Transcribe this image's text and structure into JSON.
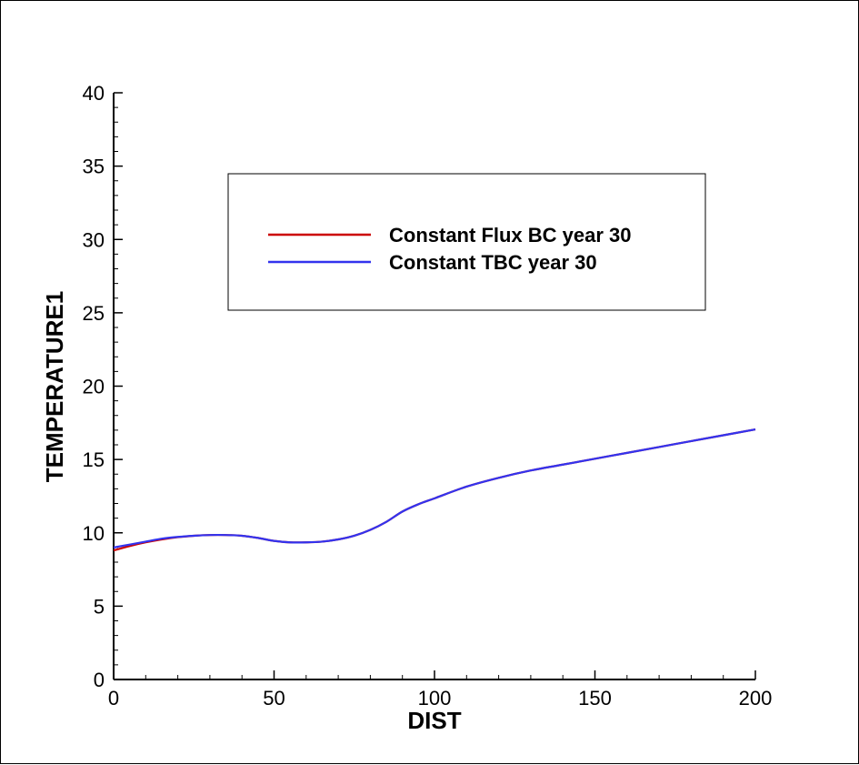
{
  "chart_data": {
    "type": "line",
    "xlabel": "DIST",
    "ylabel": "TEMPERATURE1",
    "xlim": [
      0,
      200
    ],
    "ylim": [
      0,
      40
    ],
    "x_ticks": [
      0,
      50,
      100,
      150,
      200
    ],
    "y_ticks": [
      0,
      5,
      10,
      15,
      20,
      25,
      30,
      35,
      40
    ],
    "grid": false,
    "legend_position": "top-right",
    "series": [
      {
        "name": "Constant Flux BC year 30",
        "color": "#cc0000",
        "x": [
          0,
          5,
          10,
          15,
          20,
          25,
          30,
          35,
          40,
          45,
          50,
          55,
          60,
          65,
          70,
          75,
          80,
          85,
          90,
          95,
          100,
          110,
          120,
          130,
          140,
          150,
          160,
          170,
          180,
          190,
          200
        ],
        "y": [
          8.8,
          9.1,
          9.35,
          9.55,
          9.7,
          9.8,
          9.85,
          9.85,
          9.8,
          9.65,
          9.45,
          9.35,
          9.35,
          9.4,
          9.55,
          9.8,
          10.2,
          10.75,
          11.45,
          11.95,
          12.35,
          13.15,
          13.75,
          14.25,
          14.65,
          15.05,
          15.45,
          15.85,
          16.25,
          16.65,
          17.05
        ]
      },
      {
        "name": "Constant TBC year 30",
        "color": "#3333ee",
        "x": [
          0,
          5,
          10,
          15,
          20,
          25,
          30,
          35,
          40,
          45,
          50,
          55,
          60,
          65,
          70,
          75,
          80,
          85,
          90,
          95,
          100,
          110,
          120,
          130,
          140,
          150,
          160,
          170,
          180,
          190,
          200
        ],
        "y": [
          9.0,
          9.2,
          9.4,
          9.6,
          9.72,
          9.8,
          9.85,
          9.85,
          9.8,
          9.65,
          9.45,
          9.35,
          9.35,
          9.4,
          9.55,
          9.8,
          10.2,
          10.75,
          11.45,
          11.95,
          12.35,
          13.15,
          13.75,
          14.25,
          14.65,
          15.05,
          15.45,
          15.85,
          16.25,
          16.65,
          17.05
        ]
      }
    ]
  }
}
